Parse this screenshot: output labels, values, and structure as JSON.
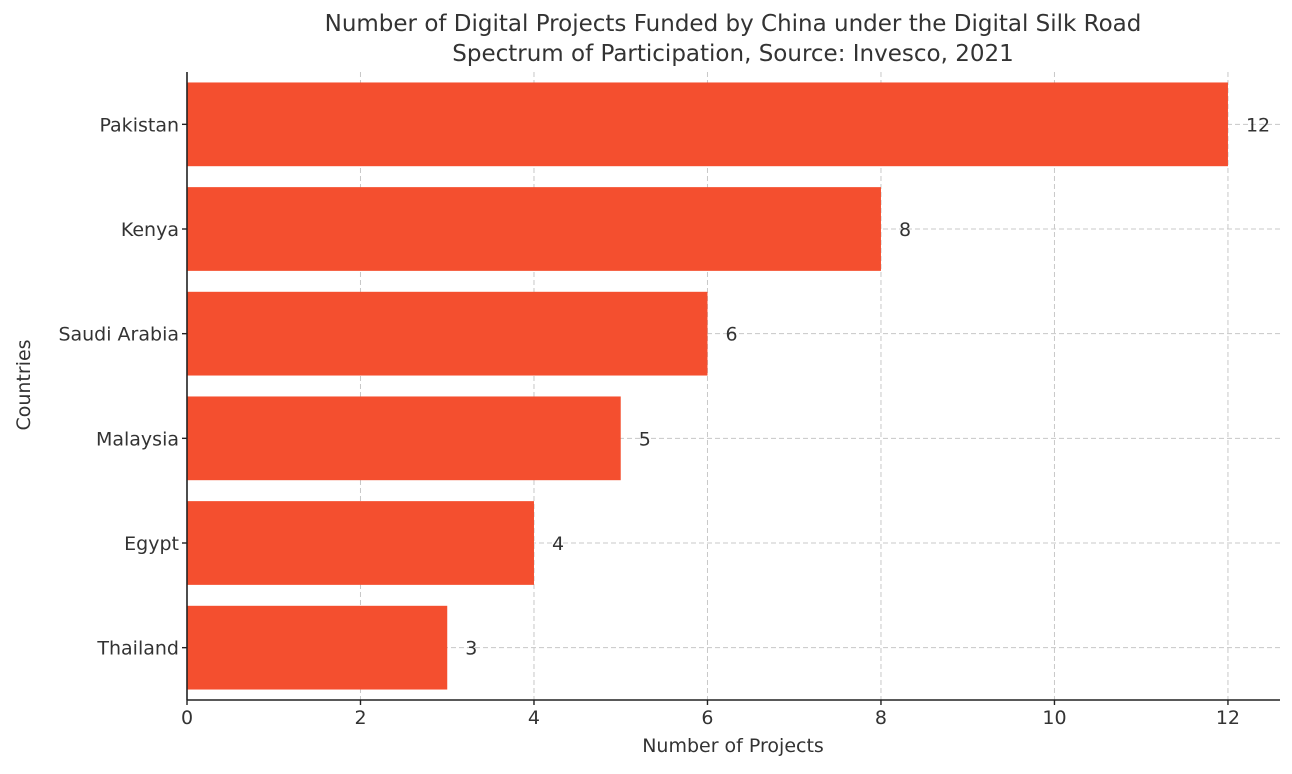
{
  "chart_data": {
    "type": "bar",
    "orientation": "horizontal",
    "title_line1": "Number of Digital Projects Funded by China under the Digital Silk Road",
    "title_line2": "Spectrum of Participation, Source: Invesco, 2021",
    "xlabel": "Number of Projects",
    "ylabel": "Countries",
    "categories": [
      "Pakistan",
      "Kenya",
      "Saudi Arabia",
      "Malaysia",
      "Egypt",
      "Thailand"
    ],
    "values": [
      12,
      8,
      6,
      5,
      4,
      3
    ],
    "data_labels": [
      "12",
      "8",
      "6",
      "5",
      "4",
      "3"
    ],
    "xlim": [
      0,
      12.6
    ],
    "xticks": [
      0,
      2,
      4,
      6,
      8,
      10,
      12
    ],
    "xtick_labels": [
      "0",
      "2",
      "4",
      "6",
      "8",
      "10",
      "12"
    ],
    "grid": true,
    "bar_color": "#f44f2f"
  }
}
